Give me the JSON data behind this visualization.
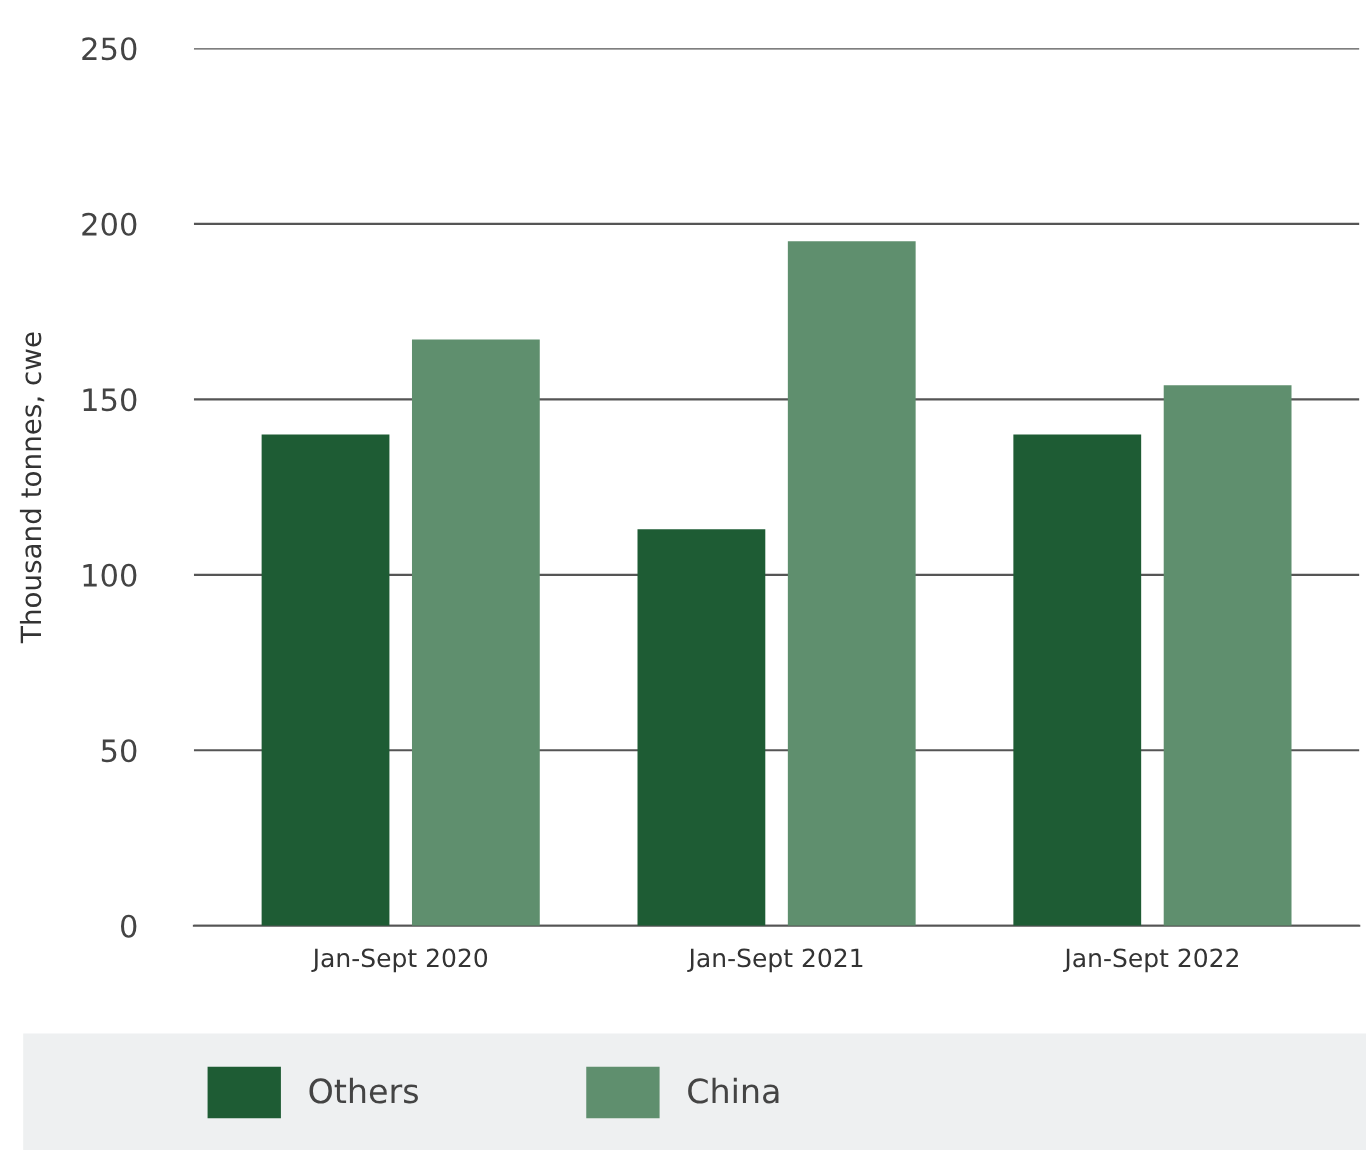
{
  "chart_data": {
    "type": "bar",
    "ylabel": "Thousand tonnes, cwe",
    "categories": [
      "Jan-Sept 2020",
      "Jan-Sept 2021",
      "Jan-Sept 2022"
    ],
    "series": [
      {
        "name": "Others",
        "color": "#1e5c34",
        "values": [
          140,
          113,
          140
        ]
      },
      {
        "name": "China",
        "color": "#5f8f6e",
        "values": [
          167,
          195,
          154
        ]
      }
    ],
    "ylim": [
      0,
      250
    ],
    "yticks": [
      0,
      50,
      100,
      150,
      200,
      250
    ],
    "grid": "y",
    "legend": "bottom"
  }
}
